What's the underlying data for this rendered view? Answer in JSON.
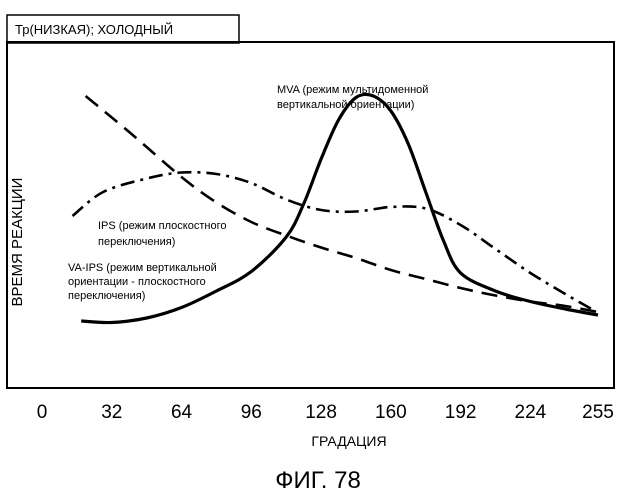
{
  "chart_data": {
    "type": "line",
    "header_tag": "Тр(НИЗКАЯ); ХОЛОДНЫЙ",
    "xlabel": "ГРАДАЦИЯ",
    "ylabel": "ВРЕМЯ РЕАКЦИИ",
    "caption": "ФИГ. 78",
    "xlim": [
      0,
      255
    ],
    "x_ticks": [
      0,
      32,
      64,
      96,
      128,
      160,
      192,
      224,
      255
    ],
    "y_axis_values_printed": false,
    "grid": false,
    "series": [
      {
        "name": "MVA (режим мультидоменной вертикальной ориентации)",
        "line_style": "dashed",
        "annotation_lines": [
          "MVA (режим мультидоменной",
          "вертикальной ориентации)"
        ],
        "x": [
          20,
          40,
          64,
          80,
          96,
          112,
          128,
          144,
          160,
          176,
          192,
          208,
          224,
          240,
          255
        ],
        "y": [
          0.92,
          0.8,
          0.65,
          0.565,
          0.5,
          0.455,
          0.415,
          0.38,
          0.34,
          0.31,
          0.28,
          0.255,
          0.235,
          0.22,
          0.2
        ]
      },
      {
        "name": "IPS (режим плоскостного переключения)",
        "line_style": "dash-dot",
        "annotation_lines": [
          "IPS (режим плоскостного",
          "переключения)"
        ],
        "x": [
          14,
          28,
          48,
          64,
          80,
          96,
          112,
          128,
          144,
          160,
          176,
          192,
          208,
          224,
          240,
          252
        ],
        "y": [
          0.52,
          0.6,
          0.645,
          0.665,
          0.66,
          0.63,
          0.575,
          0.54,
          0.535,
          0.55,
          0.545,
          0.49,
          0.41,
          0.33,
          0.26,
          0.21
        ]
      },
      {
        "name": "VA-IPS (режим вертикальной ориентации - плоскостного переключения)",
        "line_style": "solid",
        "annotation_lines": [
          "VA-IPS (режим вертикальной",
          "ориентации - плоскостного",
          "переключения)"
        ],
        "x": [
          18,
          32,
          48,
          64,
          80,
          96,
          112,
          120,
          128,
          136,
          144,
          152,
          160,
          168,
          176,
          184,
          192,
          208,
          224,
          240,
          255
        ],
        "y": [
          0.17,
          0.165,
          0.18,
          0.215,
          0.27,
          0.335,
          0.45,
          0.56,
          0.71,
          0.84,
          0.915,
          0.92,
          0.87,
          0.76,
          0.6,
          0.44,
          0.33,
          0.27,
          0.235,
          0.21,
          0.19
        ]
      }
    ]
  }
}
